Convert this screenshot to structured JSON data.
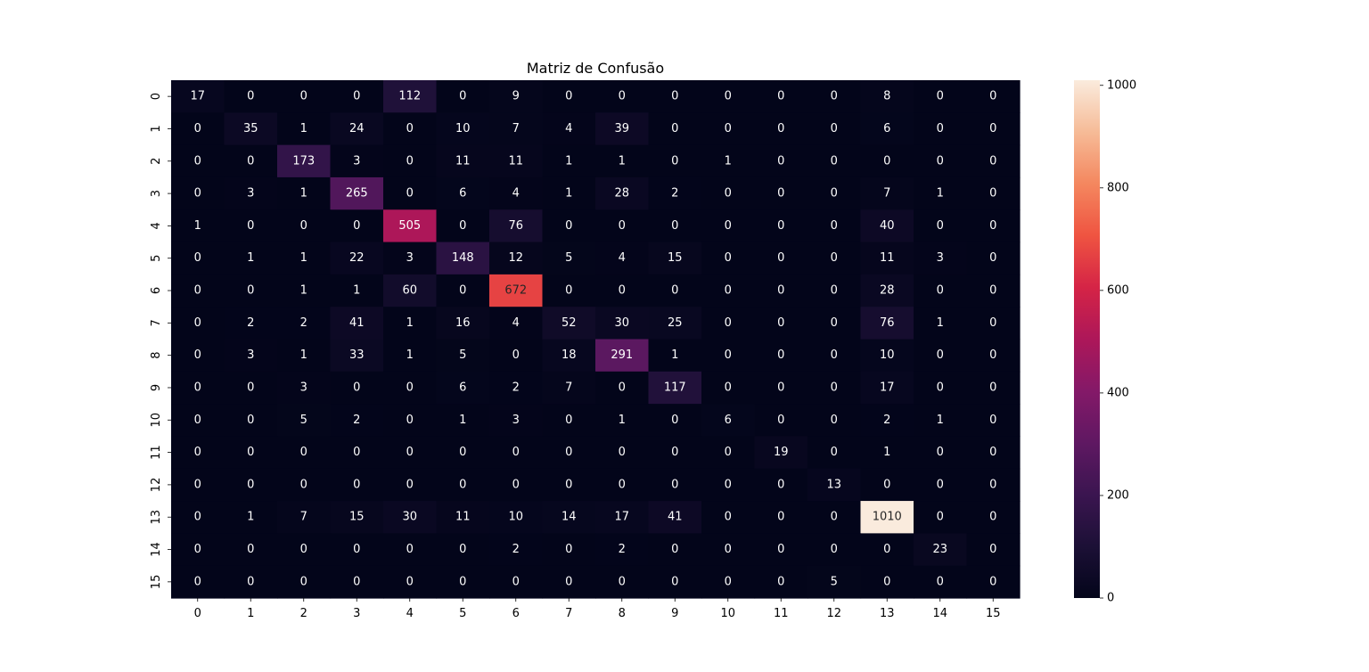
{
  "chart_data": {
    "type": "heatmap",
    "title": "Matriz de Confusão",
    "xlabel": "",
    "ylabel": "",
    "x_categories": [
      "0",
      "1",
      "2",
      "3",
      "4",
      "5",
      "6",
      "7",
      "8",
      "9",
      "10",
      "11",
      "12",
      "13",
      "14",
      "15"
    ],
    "y_categories": [
      "0",
      "1",
      "2",
      "3",
      "4",
      "5",
      "6",
      "7",
      "8",
      "9",
      "10",
      "11",
      "12",
      "13",
      "14",
      "15"
    ],
    "matrix": [
      [
        17,
        0,
        0,
        0,
        112,
        0,
        9,
        0,
        0,
        0,
        0,
        0,
        0,
        8,
        0,
        0
      ],
      [
        0,
        35,
        1,
        24,
        0,
        10,
        7,
        4,
        39,
        0,
        0,
        0,
        0,
        6,
        0,
        0
      ],
      [
        0,
        0,
        173,
        3,
        0,
        11,
        11,
        1,
        1,
        0,
        1,
        0,
        0,
        0,
        0,
        0
      ],
      [
        0,
        3,
        1,
        265,
        0,
        6,
        4,
        1,
        28,
        2,
        0,
        0,
        0,
        7,
        1,
        0
      ],
      [
        1,
        0,
        0,
        0,
        505,
        0,
        76,
        0,
        0,
        0,
        0,
        0,
        0,
        40,
        0,
        0
      ],
      [
        0,
        1,
        1,
        22,
        3,
        148,
        12,
        5,
        4,
        15,
        0,
        0,
        0,
        11,
        3,
        0
      ],
      [
        0,
        0,
        1,
        1,
        60,
        0,
        672,
        0,
        0,
        0,
        0,
        0,
        0,
        28,
        0,
        0
      ],
      [
        0,
        2,
        2,
        41,
        1,
        16,
        4,
        52,
        30,
        25,
        0,
        0,
        0,
        76,
        1,
        0
      ],
      [
        0,
        3,
        1,
        33,
        1,
        5,
        0,
        18,
        291,
        1,
        0,
        0,
        0,
        10,
        0,
        0
      ],
      [
        0,
        0,
        3,
        0,
        0,
        6,
        2,
        7,
        0,
        117,
        0,
        0,
        0,
        17,
        0,
        0
      ],
      [
        0,
        0,
        5,
        2,
        0,
        1,
        3,
        0,
        1,
        0,
        6,
        0,
        0,
        2,
        1,
        0
      ],
      [
        0,
        0,
        0,
        0,
        0,
        0,
        0,
        0,
        0,
        0,
        0,
        19,
        0,
        1,
        0,
        0
      ],
      [
        0,
        0,
        0,
        0,
        0,
        0,
        0,
        0,
        0,
        0,
        0,
        0,
        13,
        0,
        0,
        0
      ],
      [
        0,
        1,
        7,
        15,
        30,
        11,
        10,
        14,
        17,
        41,
        0,
        0,
        0,
        1010,
        0,
        0
      ],
      [
        0,
        0,
        0,
        0,
        0,
        0,
        2,
        0,
        2,
        0,
        0,
        0,
        0,
        0,
        23,
        0
      ],
      [
        0,
        0,
        0,
        0,
        0,
        0,
        0,
        0,
        0,
        0,
        0,
        0,
        5,
        0,
        0,
        0
      ]
    ],
    "colorbar": {
      "min": 0,
      "max": 1010,
      "ticks": [
        0,
        200,
        400,
        600,
        800,
        1000
      ],
      "colormap": "rocket"
    }
  }
}
